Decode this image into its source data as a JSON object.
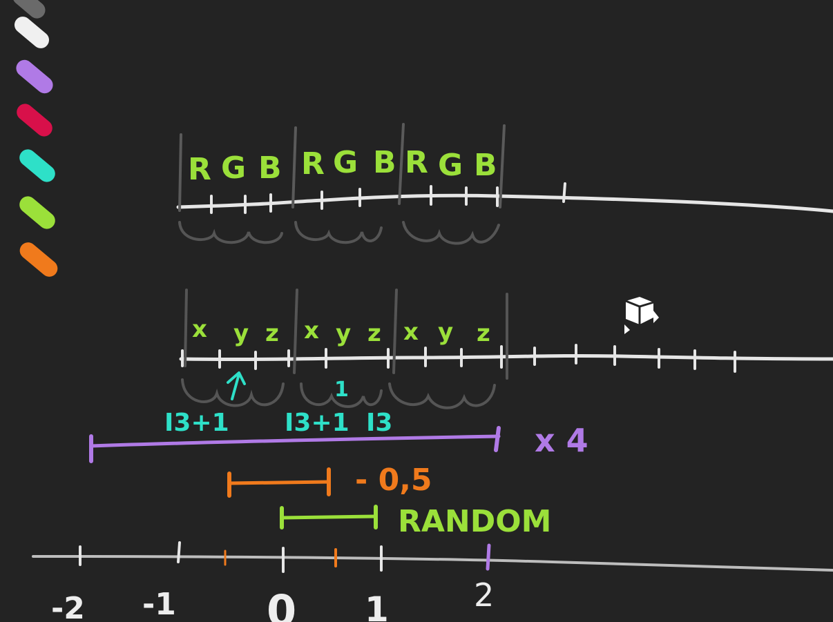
{
  "palette": {
    "colors": [
      {
        "name": "gray",
        "hex": "#6a6a6a"
      },
      {
        "name": "white",
        "hex": "#f0f0f0"
      },
      {
        "name": "purple",
        "hex": "#b07ae6"
      },
      {
        "name": "red",
        "hex": "#d8104a"
      },
      {
        "name": "cyan",
        "hex": "#2ee0c8"
      },
      {
        "name": "green",
        "hex": "#9be03a"
      },
      {
        "name": "orange",
        "hex": "#f07a1c"
      }
    ]
  },
  "colors": {
    "background": "#232323",
    "line": "#e8e8e8",
    "divider": "#5a5a5a",
    "green": "#9be03a",
    "cyan": "#2ee0c8",
    "purple": "#b07ae6",
    "orange": "#f07a1c"
  },
  "row1": {
    "labels": [
      "R",
      "G",
      "B",
      "R",
      "G",
      "B",
      "R",
      "G",
      "B"
    ]
  },
  "row2": {
    "labels": [
      "x",
      "y",
      "z",
      "x",
      "y",
      "z",
      "x",
      "y",
      "z"
    ]
  },
  "annotations": {
    "index_a": "I3+1",
    "index_b": "I3+1",
    "index_c": "I3",
    "small_mark": "1"
  },
  "ranges": {
    "purple_label": "x 4",
    "orange_label": "- 0,5",
    "green_label": "RANDOM"
  },
  "axis": {
    "ticks": [
      "-2",
      "-1",
      "0",
      "1",
      "2"
    ]
  },
  "cursor_icon": "cube-play-icon"
}
